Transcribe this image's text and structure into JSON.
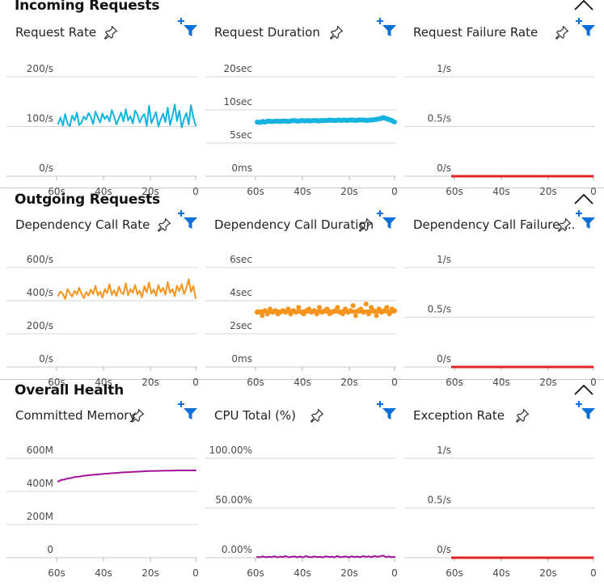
{
  "sections": [
    {
      "title": "Incoming Requests",
      "panels": [
        {
          "title": "Request Rate",
          "kind": "line",
          "color": "#16b3e0",
          "y_ticks": [
            "200/s",
            "100/s",
            "0/s"
          ],
          "y_max": 200,
          "x_ticks": [
            "60s",
            "40s",
            "20s",
            "0"
          ],
          "values": [
            105,
            118,
            102,
            125,
            106,
            101,
            122,
            112,
            128,
            103,
            108,
            120,
            114,
            127,
            119,
            105,
            130,
            118,
            108,
            126,
            115,
            122,
            110,
            133,
            120,
            104,
            116,
            128,
            110,
            135,
            112,
            121,
            106,
            132,
            124,
            108,
            119,
            125,
            101,
            142,
            107,
            118,
            129,
            100,
            114,
            126,
            109,
            138,
            103,
            120,
            144,
            111,
            132,
            98,
            115,
            127,
            104,
            143,
            118,
            102
          ]
        },
        {
          "title": "Request Duration",
          "kind": "band",
          "color": "#16b3e0",
          "y_ticks": [
            "20sec",
            "10sec",
            "5sec",
            "0ms"
          ],
          "y_max": 20,
          "x_ticks": [
            "60s",
            "40s",
            "20s",
            "0"
          ],
          "values": [
            10.9,
            10.8,
            11.0,
            10.9,
            11.1,
            11.0,
            11.0,
            11.1,
            11.0,
            11.1,
            11.1,
            11.0,
            11.1,
            11.2,
            11.1,
            11.1,
            11.2,
            11.1,
            11.2,
            11.1,
            11.2,
            11.2,
            11.1,
            11.2,
            11.2,
            11.2,
            11.3,
            11.2,
            11.2,
            11.3,
            11.2,
            11.3,
            11.2,
            11.3,
            11.3,
            11.2,
            11.3,
            11.3,
            11.3,
            11.2,
            11.3,
            11.3,
            11.4,
            11.5,
            11.6,
            11.8,
            11.6,
            11.4,
            11.2,
            10.9
          ]
        },
        {
          "title": "Request Failure Rate",
          "kind": "flat",
          "color": "#e02424",
          "y_ticks": [
            "1/s",
            "0.5/s",
            "0/s"
          ],
          "y_max": 1,
          "x_ticks": [
            "60s",
            "40s",
            "20s",
            "0"
          ],
          "values": [
            0,
            0
          ]
        }
      ]
    },
    {
      "title": "Outgoing Requests",
      "panels": [
        {
          "title": "Dependency Call Rate",
          "kind": "line",
          "color": "#f7941d",
          "y_ticks": [
            "600/s",
            "400/s",
            "200/s",
            "0/s"
          ],
          "y_max": 600,
          "x_ticks": [
            "60s",
            "40s",
            "20s",
            "0"
          ],
          "values": [
            430,
            455,
            440,
            410,
            470,
            445,
            425,
            460,
            438,
            478,
            442,
            415,
            452,
            430,
            468,
            440,
            490,
            432,
            455,
            418,
            470,
            445,
            500,
            436,
            462,
            428,
            485,
            450,
            440,
            505,
            432,
            470,
            448,
            495,
            438,
            460,
            420,
            488,
            450,
            510,
            442,
            468,
            430,
            495,
            452,
            478,
            435,
            512,
            448,
            470,
            428,
            490,
            458,
            500,
            440,
            475,
            530,
            452,
            488,
            415
          ]
        },
        {
          "title": "Dependency Call Duration",
          "kind": "dots",
          "color": "#f7941d",
          "y_ticks": [
            "6sec",
            "4sec",
            "2sec",
            "0ms"
          ],
          "y_max": 6,
          "x_ticks": [
            "60s",
            "40s",
            "20s",
            "0"
          ],
          "values": [
            3.3,
            3.3,
            3.1,
            3.4,
            3.2,
            3.5,
            3.3,
            3.4,
            3.2,
            3.3,
            3.4,
            3.3,
            3.5,
            3.2,
            3.4,
            3.3,
            3.6,
            3.3,
            3.2,
            3.4,
            3.5,
            3.3,
            3.4,
            3.2,
            3.6,
            3.3,
            3.4,
            3.5,
            3.2,
            3.3,
            3.4,
            3.6,
            3.3,
            3.2,
            3.5,
            3.3,
            3.4,
            3.7,
            3.1,
            3.4,
            3.5,
            3.3,
            3.8,
            3.2,
            3.6,
            3.4,
            3.1,
            3.5,
            3.3,
            3.4,
            3.6,
            3.2,
            3.5,
            3.4
          ]
        },
        {
          "title": "Dependency Call Failure ...",
          "kind": "flat",
          "color": "#e02424",
          "y_ticks": [
            "1/s",
            "0.5/s",
            "0/s"
          ],
          "y_max": 1,
          "x_ticks": [
            "60s",
            "40s",
            "20s",
            "0"
          ],
          "values": [
            0,
            0
          ]
        }
      ]
    },
    {
      "title": "Overall Health",
      "panels": [
        {
          "title": "Committed Memory",
          "kind": "line",
          "color": "#a2139a",
          "y_ticks": [
            "600M",
            "400M",
            "200M",
            "0"
          ],
          "y_max": 600,
          "x_ticks": [
            "60s",
            "40s",
            "20s",
            "0"
          ],
          "values": [
            460,
            470,
            472,
            478,
            480,
            486,
            488,
            490,
            494,
            496,
            498,
            500,
            502,
            503,
            505,
            507,
            508,
            510,
            511,
            512,
            514,
            515,
            516,
            517,
            518,
            519,
            520,
            521,
            522,
            523,
            523,
            524,
            524,
            525,
            525,
            526,
            526,
            526,
            527,
            527,
            527,
            527,
            527,
            527,
            527
          ]
        },
        {
          "title": "CPU Total (%)",
          "kind": "line",
          "color": "#a2139a",
          "y_ticks": [
            "100.00%",
            "50.00%",
            "0.00%"
          ],
          "y_max": 100,
          "x_ticks": [
            "60s",
            "40s",
            "20s",
            "0"
          ],
          "values": [
            0.8,
            0.5,
            1.4,
            0.4,
            1.0,
            0.6,
            1.5,
            0.3,
            1.1,
            0.7,
            1.6,
            0.4,
            0.9,
            1.3,
            0.5,
            1.2,
            0.3,
            1.6,
            0.8,
            0.4,
            1.4,
            0.6,
            1.0,
            0.3,
            1.5,
            0.7,
            1.1,
            0.4,
            1.7,
            0.6,
            0.9,
            1.3,
            0.4,
            1.5,
            0.7,
            1.2,
            0.5,
            1.6,
            0.9,
            1.4,
            0.6,
            1.8,
            1.0,
            1.5,
            2.2,
            0.7,
            1.3,
            0.5,
            1.0
          ]
        },
        {
          "title": "Exception Rate",
          "kind": "flat",
          "color": "#e02424",
          "y_ticks": [
            "1/s",
            "0.5/s",
            "0/s"
          ],
          "y_max": 1,
          "x_ticks": [
            "60s",
            "40s",
            "20s",
            "0"
          ],
          "values": [
            0,
            0
          ]
        }
      ]
    }
  ],
  "icons": {
    "pin": "pin-icon",
    "filter": "add-filter-icon",
    "collapse": "chevron-up-icon"
  }
}
